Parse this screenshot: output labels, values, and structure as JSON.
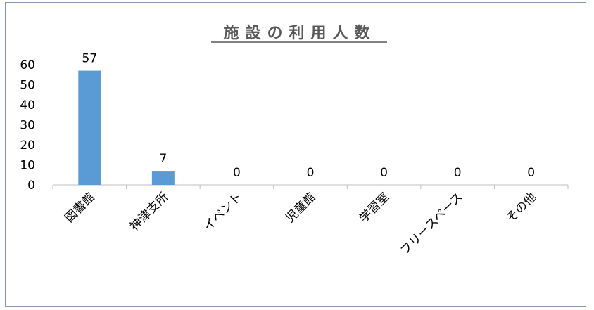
{
  "chart_data": {
    "type": "bar",
    "title": "施設の利用人数",
    "categories": [
      "図書館",
      "神津支所",
      "イベント",
      "児童館",
      "学習室",
      "フリースペース",
      "その他"
    ],
    "values": [
      57,
      7,
      0,
      0,
      0,
      0,
      0
    ],
    "data_labels": [
      "57",
      "7",
      "0",
      "0",
      "0",
      "0",
      "0"
    ],
    "yticks": [
      "0",
      "10",
      "20",
      "30",
      "40",
      "50",
      "60"
    ],
    "ylim": [
      0,
      60
    ],
    "xlabel": "",
    "ylabel": "",
    "grid": false,
    "legend": "none",
    "bar_color": "#5b9bd5",
    "axis_color": "#bfbfbf"
  }
}
